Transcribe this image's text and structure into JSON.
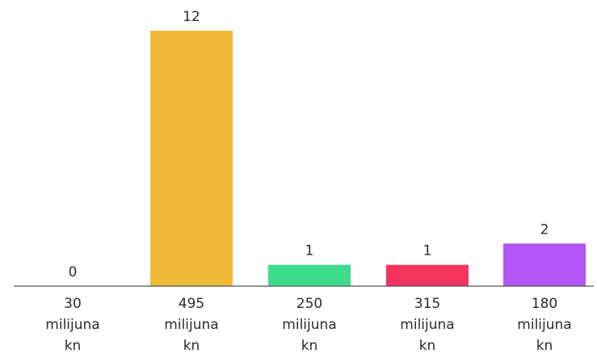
{
  "chart_data": {
    "type": "bar",
    "categories": [
      [
        "30",
        "milijuna",
        "kn"
      ],
      [
        "495",
        "milijuna",
        "kn"
      ],
      [
        "250",
        "milijuna",
        "kn"
      ],
      [
        "315",
        "milijuna",
        "kn"
      ],
      [
        "180",
        "milijuna",
        "kn"
      ]
    ],
    "values": [
      0,
      12,
      1,
      1,
      2
    ],
    "value_labels": [
      "0",
      "12",
      "1",
      "1",
      "2"
    ],
    "colors": [
      "#f0b93a",
      "#f0b93a",
      "#3ddc8c",
      "#f2355e",
      "#b354f5"
    ],
    "title": "",
    "xlabel": "",
    "ylabel": "",
    "ylim": [
      0,
      12
    ],
    "grid": false,
    "legend": "none",
    "axis_color": "#555555"
  }
}
